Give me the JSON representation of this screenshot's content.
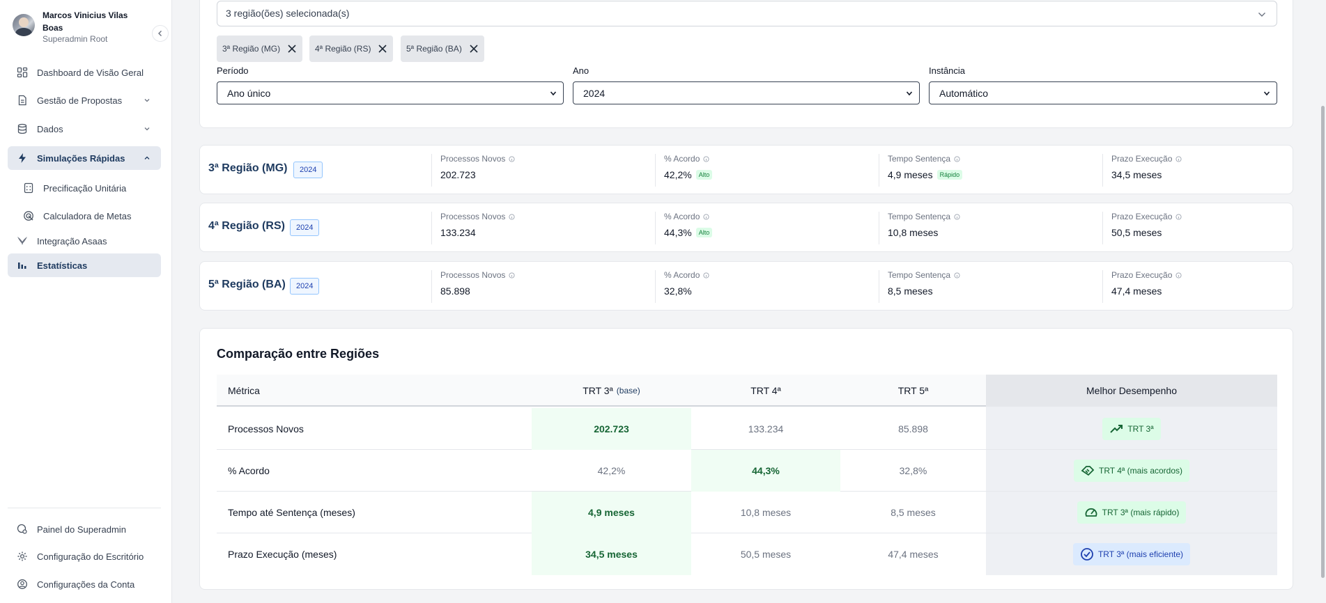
{
  "user": {
    "name": "Marcos Vinicius Vilas Boas",
    "role": "Superadmin Root"
  },
  "sidebar": {
    "items": [
      {
        "label": "Dashboard de Visão Geral",
        "icon": "dashboard-icon"
      },
      {
        "label": "Gestão de Propostas",
        "icon": "document-icon"
      },
      {
        "label": "Dados",
        "icon": "database-icon"
      },
      {
        "label": "Simulações Rápidas",
        "icon": "lightning-icon"
      },
      {
        "label": "Precificação Unitária",
        "icon": "calculator-icon"
      },
      {
        "label": "Calculadora de Metas",
        "icon": "target-icon"
      },
      {
        "label": "Integração Asaas",
        "icon": "asaas-icon"
      },
      {
        "label": "Estatísticas",
        "icon": "bar-chart-icon"
      }
    ],
    "footer": [
      {
        "label": "Painel do Superadmin",
        "icon": "admin-icon"
      },
      {
        "label": "Configuração do Escritório",
        "icon": "gear-icon"
      },
      {
        "label": "Configurações da Conta",
        "icon": "user-circle-icon"
      }
    ]
  },
  "filters": {
    "regions_selected": "3 região(ões) selecionada(s)",
    "chips": [
      "3ª Região (MG)",
      "4ª Região (RS)",
      "5ª Região (BA)"
    ],
    "periodo_label": "Período",
    "periodo_value": "Ano único",
    "ano_label": "Ano",
    "ano_value": "2024",
    "instancia_label": "Instância",
    "instancia_value": "Automático"
  },
  "metric_labels": {
    "processos": "Processos Novos",
    "acordo": "% Acordo",
    "tempo": "Tempo Sentença",
    "prazo": "Prazo Execução"
  },
  "regions": [
    {
      "title": "3ª Região (MG)",
      "year": "2024",
      "processos": "202.723",
      "acordo": "42,2%",
      "acordo_tag": "Alto",
      "tempo": "4,9 meses",
      "tempo_tag": "Rápido",
      "prazo": "34,5 meses"
    },
    {
      "title": "4ª Região (RS)",
      "year": "2024",
      "processos": "133.234",
      "acordo": "44,3%",
      "acordo_tag": "Alto",
      "tempo": "10,8 meses",
      "prazo": "50,5 meses"
    },
    {
      "title": "5ª Região (BA)",
      "year": "2024",
      "processos": "85.898",
      "acordo": "32,8%",
      "tempo": "8,5 meses",
      "prazo": "47,4 meses"
    }
  ],
  "comparison": {
    "title": "Comparação entre Regiões",
    "headers": {
      "metric": "Métrica",
      "trt3": "TRT 3ª",
      "trt3_base": "(base)",
      "trt4": "TRT 4ª",
      "trt5": "TRT 5ª",
      "best": "Melhor Desempenho"
    },
    "rows": [
      {
        "metric": "Processos Novos",
        "trt3": "202.723",
        "trt4": "133.234",
        "trt5": "85.898",
        "best": "TRT 3ª",
        "best_icon": "trending-up-icon"
      },
      {
        "metric": "% Acordo",
        "trt3": "42,2%",
        "trt4": "44,3%",
        "trt5": "32,8%",
        "best": "TRT 4ª (mais acordos)",
        "best_icon": "handshake-icon"
      },
      {
        "metric": "Tempo até Sentença (meses)",
        "trt3": "4,9 meses",
        "trt4": "10,8 meses",
        "trt5": "8,5 meses",
        "best": "TRT 3ª (mais rápido)",
        "best_icon": "speedometer-icon"
      },
      {
        "metric": "Prazo Execução (meses)",
        "trt3": "34,5 meses",
        "trt4": "50,5 meses",
        "trt5": "47,4 meses",
        "best": "TRT 3ª (mais eficiente)",
        "best_icon": "check-circle-icon"
      }
    ]
  }
}
